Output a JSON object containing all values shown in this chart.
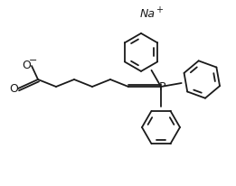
{
  "background_color": "#ffffff",
  "line_color": "#1a1a1a",
  "line_width": 1.3,
  "fig_width": 2.61,
  "fig_height": 2.07,
  "dpi": 100,
  "na_text": "Na",
  "na_superscript": "+",
  "o_minus": "−",
  "o_label": "O",
  "p_label": "P"
}
